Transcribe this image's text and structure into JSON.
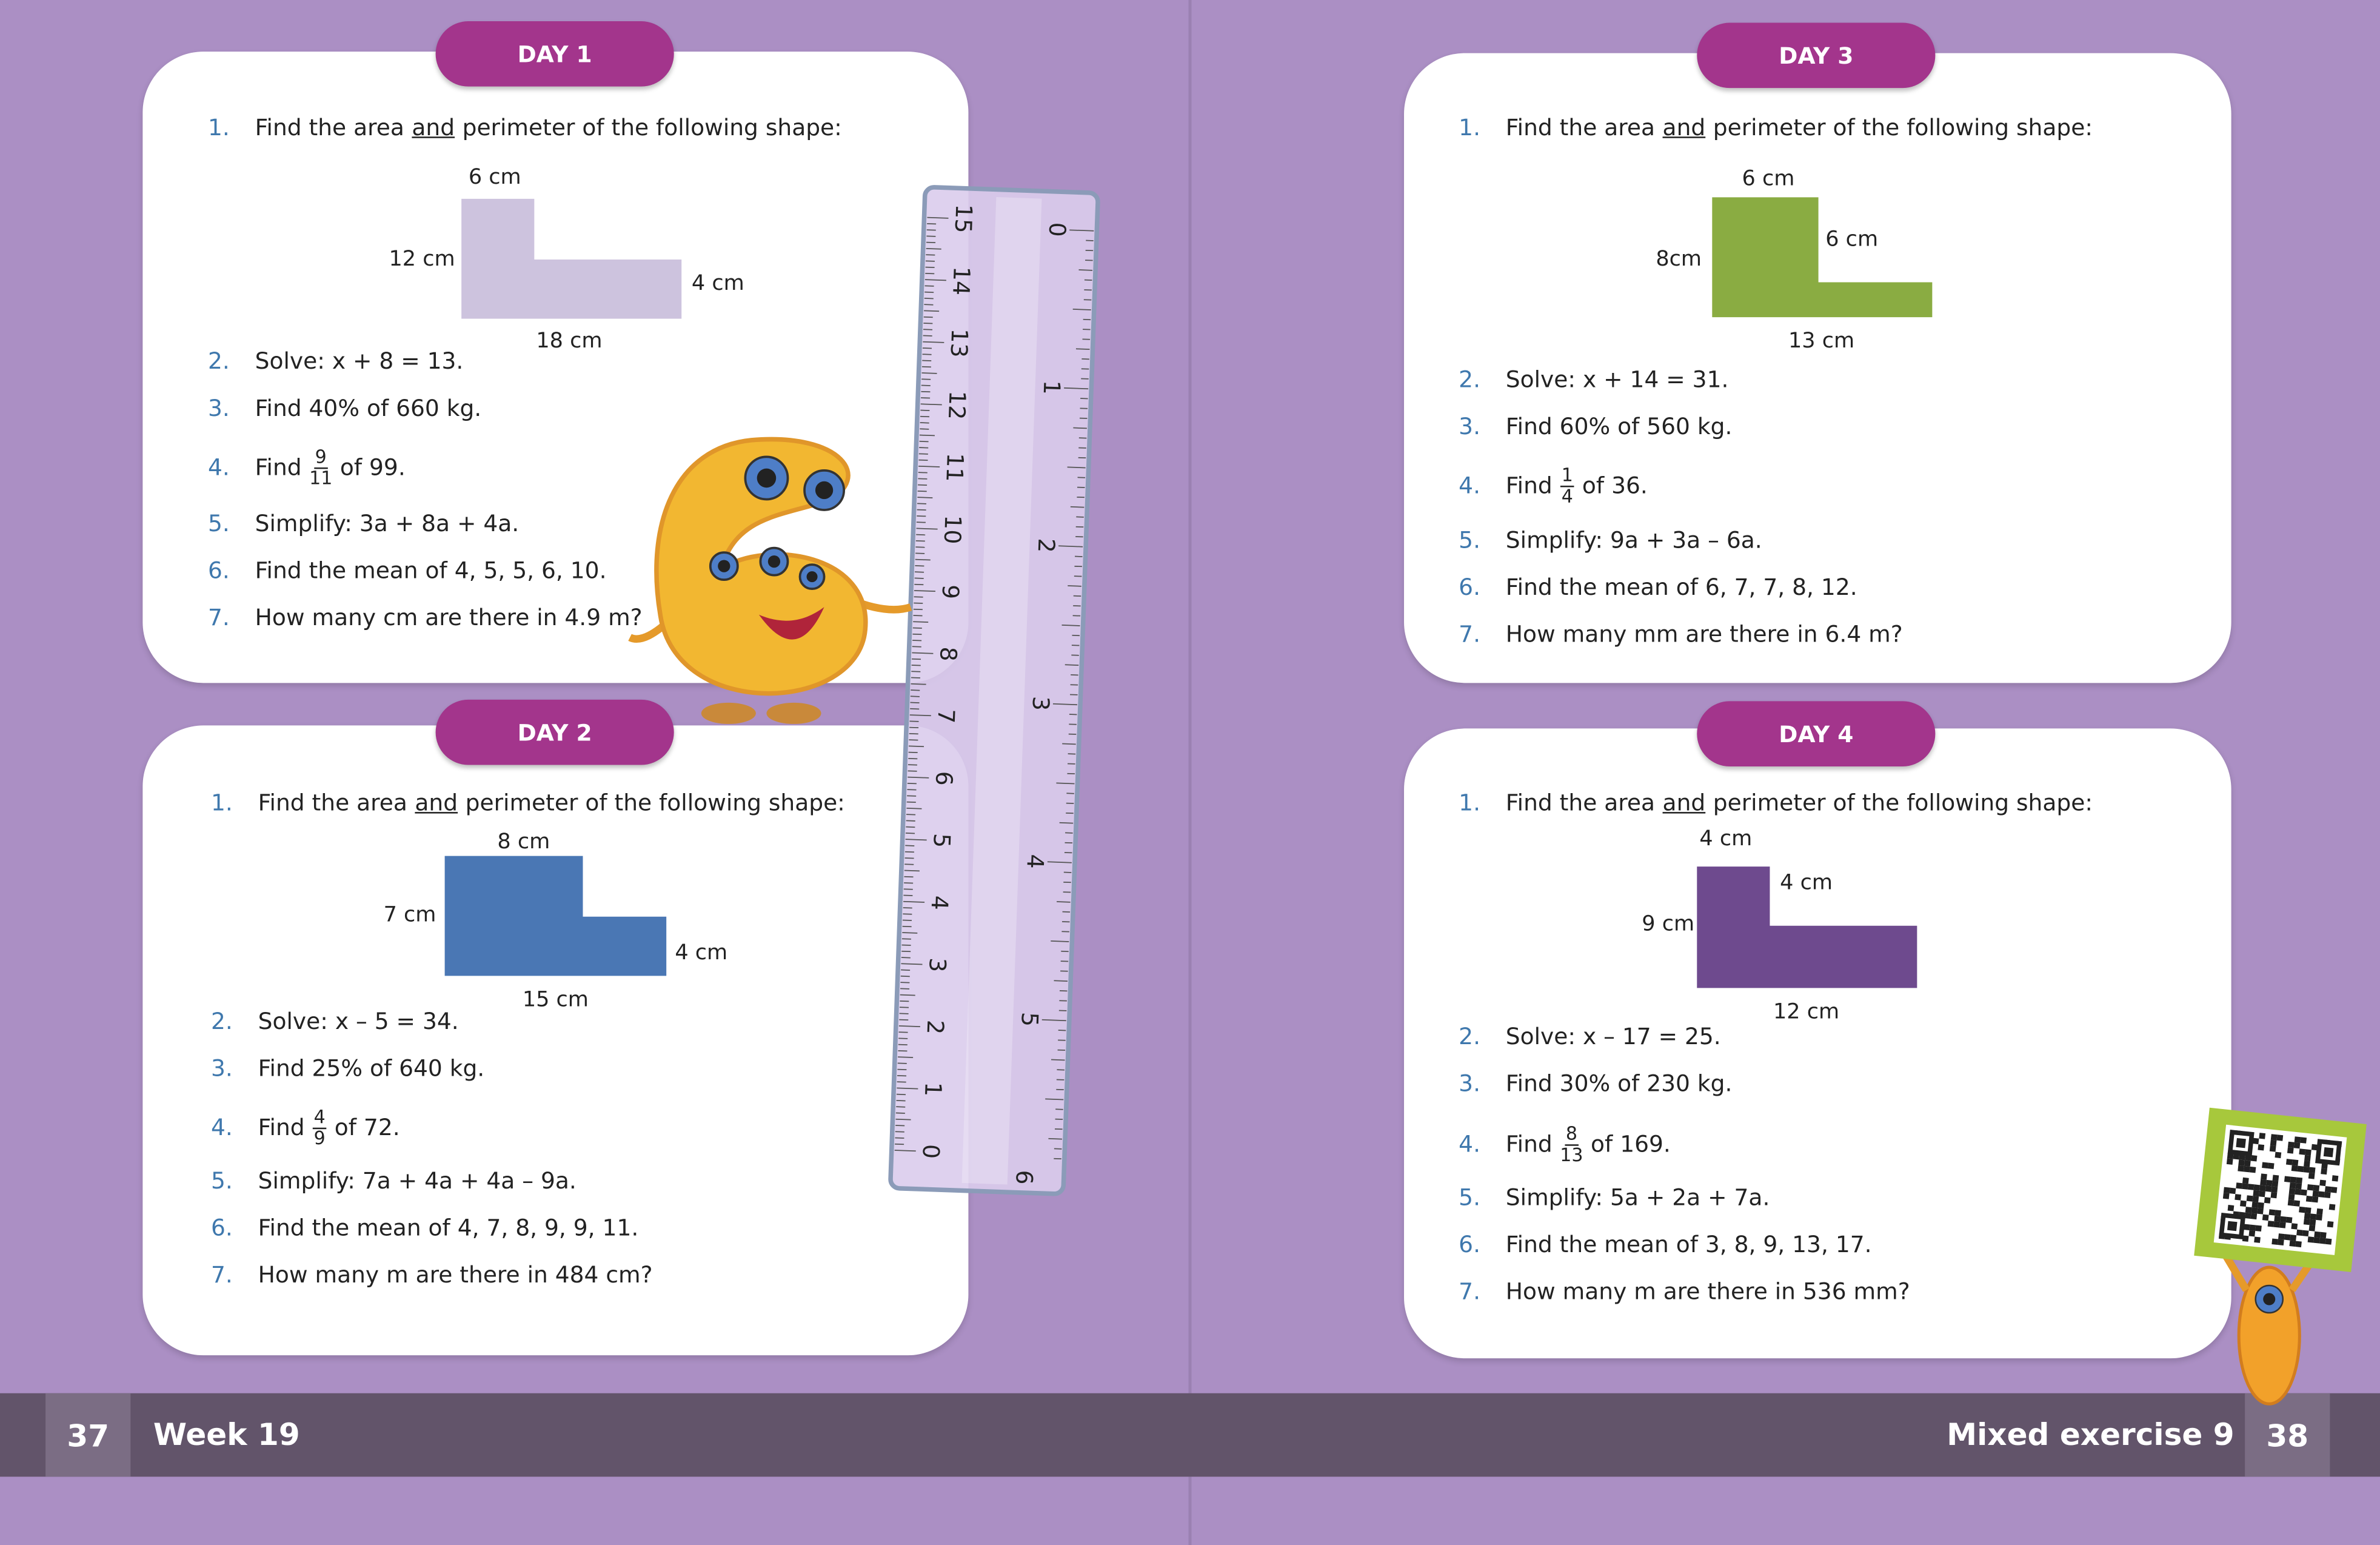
{
  "pages": [
    {
      "number": "37",
      "title": "Week 19"
    },
    {
      "number": "38",
      "title": "Mixed exercise 9"
    }
  ],
  "days": [
    {
      "label": "DAY 1",
      "shape": [
        "6 cm",
        "12 cm",
        "4 cm",
        "18 cm"
      ],
      "questions": [
        {
          "number": "1.",
          "text": [
            "Find the area",
            "and",
            "perimeter of the following shape:"
          ]
        },
        {
          "number": "2.",
          "text": "Solve: x + 8 = 13."
        },
        {
          "number": "3.",
          "text": "Find 40% of 660 kg."
        },
        {
          "number": "4.",
          "text": "Find",
          "fraction": [
            "9",
            "11"
          ],
          "after": "of 99."
        },
        {
          "number": "5.",
          "text": "Simplify: 3a + 8a + 4a."
        },
        {
          "number": "6.",
          "text": "Find the mean of 4, 5, 5, 6, 10."
        },
        {
          "number": "7.",
          "text": "How many cm are there in 4.9 m?"
        }
      ]
    },
    {
      "label": "DAY 2",
      "shape": [
        "8 cm",
        "7 cm",
        "4 cm",
        "15 cm"
      ],
      "questions": [
        {
          "number": "1.",
          "text": [
            "Find the area",
            "and",
            "perimeter of the following shape:"
          ]
        },
        {
          "number": "2.",
          "text": "Solve: x – 5 = 34."
        },
        {
          "number": "3.",
          "text": "Find 25% of 640 kg."
        },
        {
          "number": "4.",
          "text": "Find",
          "fraction": [
            "4",
            "9"
          ],
          "after": "of 72."
        },
        {
          "number": "5.",
          "text": "Simplify: 7a + 4a + 4a – 9a."
        },
        {
          "number": "6.",
          "text": "Find the mean of 4, 7, 8, 9, 9, 11."
        },
        {
          "number": "7.",
          "text": "How many m are there in 484 cm?"
        }
      ]
    },
    {
      "label": "DAY 3",
      "shape": [
        "6 cm",
        "8cm",
        "6 cm",
        "13 cm"
      ],
      "questions": [
        {
          "number": "1.",
          "text": [
            "Find the area",
            "and",
            "perimeter of the following shape:"
          ]
        },
        {
          "number": "2.",
          "text": "Solve: x + 14 = 31."
        },
        {
          "number": "3.",
          "text": "Find 60% of 560 kg."
        },
        {
          "number": "4.",
          "text": "Find",
          "fraction": [
            "1",
            "4"
          ],
          "after": "of 36."
        },
        {
          "number": "5.",
          "text": "Simplify: 9a + 3a – 6a."
        },
        {
          "number": "6.",
          "text": "Find the mean of 6, 7, 7, 8, 12."
        },
        {
          "number": "7.",
          "text": "How many mm are there in 6.4 m?"
        }
      ]
    },
    {
      "label": "DAY 4",
      "shape": [
        "4 cm",
        "4 cm",
        "9 cm",
        "12 cm"
      ],
      "questions": [
        {
          "number": "1.",
          "text": [
            "Find the area",
            "and",
            "perimeter of the following shape:"
          ]
        },
        {
          "number": "2.",
          "text": "Solve: x – 17 = 25."
        },
        {
          "number": "3.",
          "text": "Find 30% of 230 kg."
        },
        {
          "number": "4.",
          "text": "Find",
          "fraction": [
            "8",
            "13"
          ],
          "after": "of 169."
        },
        {
          "number": "5.",
          "text": "Simplify: 5a + 2a + 7a."
        },
        {
          "number": "6.",
          "text": "Find the mean of 3, 8, 9, 13, 17."
        },
        {
          "number": "7.",
          "text": "How many m are there in 536 mm?"
        }
      ]
    }
  ],
  "ruler": {
    "cm": [
      0,
      1,
      2,
      3,
      4,
      5,
      6,
      7,
      8,
      9,
      10,
      11,
      12,
      13,
      14,
      15
    ],
    "inch": [
      0,
      1,
      2,
      3,
      4,
      5,
      6
    ]
  }
}
